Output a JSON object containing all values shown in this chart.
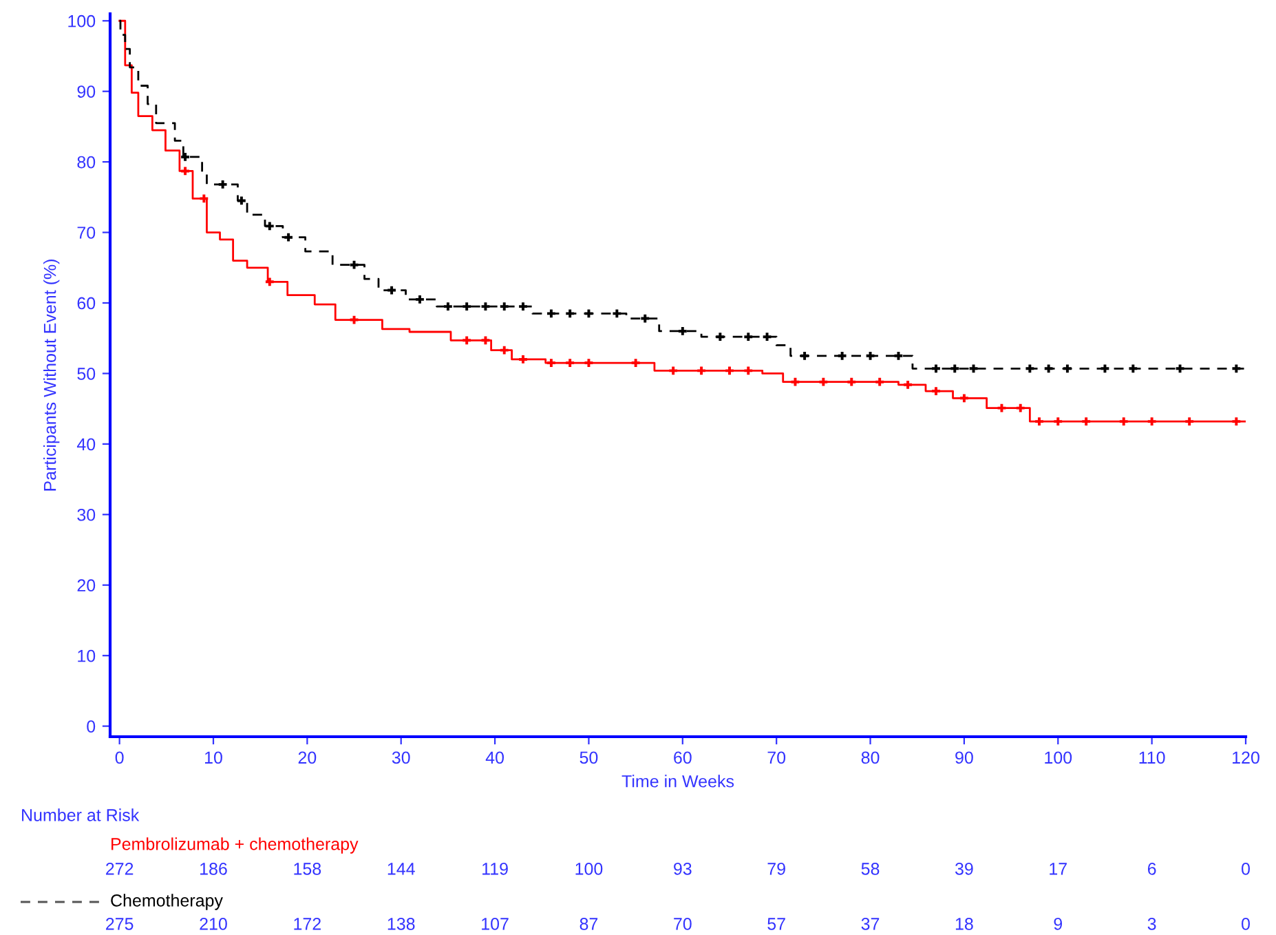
{
  "chart_data": {
    "type": "step",
    "xlabel": "Time in Weeks",
    "ylabel": "Participants Without Event (%)",
    "xlim": [
      -1,
      120
    ],
    "xticks": [
      0,
      10,
      20,
      30,
      40,
      50,
      60,
      70,
      80,
      90,
      100,
      110,
      120
    ],
    "ylim": [
      -1.5,
      101
    ],
    "yticks": [
      0,
      10,
      20,
      30,
      40,
      50,
      60,
      70,
      80,
      90,
      100
    ],
    "grid": false,
    "legend": false,
    "series": [
      {
        "name": "Pembrolizumab + chemotherapy",
        "color": "#ff0000",
        "line_style": "solid",
        "marker": "none",
        "x": [
          0,
          0.6,
          1.3,
          2.0,
          3.5,
          4.9,
          6.4,
          7.8,
          9.3,
          10.7,
          12.1,
          13.6,
          15.8,
          17.9,
          20.8,
          23.0,
          28.0,
          30.9,
          35.3,
          39.6,
          41.8,
          45.4,
          57.0,
          68.5,
          70.7,
          83.0,
          85.9,
          88.8,
          92.4,
          97.0,
          120
        ],
        "values": [
          100,
          93.7,
          89.8,
          86.5,
          84.5,
          81.6,
          78.7,
          74.8,
          70,
          69,
          66,
          65,
          63,
          61.1,
          59.8,
          57.6,
          56.3,
          55.9,
          54.7,
          53.3,
          52,
          51.5,
          50.4,
          50,
          48.8,
          48.4,
          47.5,
          46.5,
          45.1,
          43.2,
          43.2
        ]
      },
      {
        "name": "Chemotherapy",
        "color": "#000000",
        "line_style": "dashed",
        "marker": "none",
        "x": [
          0,
          0.1,
          0.6,
          1.1,
          2.0,
          3.0,
          3.9,
          5.9,
          6.8,
          8.8,
          9.3,
          12.6,
          13.6,
          15.5,
          17.4,
          19.8,
          22.7,
          26.1,
          27.6,
          30.5,
          33.8,
          44,
          54,
          57.5,
          62,
          70,
          71.5,
          84.5,
          120
        ],
        "values": [
          100,
          98,
          96,
          93.4,
          90.8,
          88.2,
          85.5,
          83,
          80.7,
          78.4,
          76.8,
          74.5,
          72.5,
          70.9,
          69.3,
          67.3,
          65.4,
          63.4,
          61.8,
          60.5,
          59.5,
          58.5,
          57.8,
          56,
          55.2,
          54,
          52.5,
          50.7,
          50.7
        ]
      },
      {
        "type": "scatter",
        "color": "#ff0000",
        "marker": "cross",
        "x": [
          7,
          9,
          16,
          25,
          37,
          39,
          41,
          43,
          46,
          48,
          50,
          55,
          59,
          62,
          65,
          67,
          72,
          75,
          78,
          81,
          84,
          87,
          90,
          94,
          96,
          98,
          100,
          103,
          107,
          110,
          114,
          119
        ],
        "values": [
          78.7,
          74.8,
          63,
          57.6,
          54.7,
          54.7,
          53.3,
          52,
          51.5,
          51.5,
          51.5,
          51.5,
          50.4,
          50.4,
          50.4,
          50.4,
          48.8,
          48.8,
          48.8,
          48.8,
          48.4,
          47.5,
          46.5,
          45.1,
          45.1,
          43.2,
          43.2,
          43.2,
          43.2,
          43.2,
          43.2,
          43.2
        ]
      },
      {
        "type": "scatter",
        "color": "#000000",
        "marker": "cross",
        "x": [
          7,
          11,
          13,
          16,
          18,
          25,
          29,
          32,
          35,
          37,
          39,
          41,
          43,
          46,
          48,
          50,
          53,
          56,
          60,
          64,
          67,
          69,
          73,
          77,
          80,
          83,
          87,
          89,
          91,
          97,
          99,
          101,
          105,
          108,
          113,
          119
        ],
        "values": [
          80.7,
          76.8,
          74.5,
          70.9,
          69.3,
          65.4,
          61.8,
          60.5,
          59.5,
          59.5,
          59.5,
          59.5,
          59.5,
          58.5,
          58.5,
          58.5,
          58.5,
          57.8,
          56,
          55.2,
          55.2,
          55.2,
          52.5,
          52.5,
          52.5,
          52.5,
          50.7,
          50.7,
          50.7,
          50.7,
          50.7,
          50.7,
          50.7,
          50.7,
          50.7,
          50.7
        ]
      }
    ],
    "annotations": [
      "Number at Risk",
      "272",
      "186",
      "158",
      "144",
      "119",
      "100",
      "93",
      "79",
      "58",
      "39",
      "17",
      "6",
      "0",
      "275",
      "210",
      "172",
      "138",
      "107",
      "87",
      "70",
      "57",
      "37",
      "18",
      "9",
      "3",
      "0"
    ]
  }
}
